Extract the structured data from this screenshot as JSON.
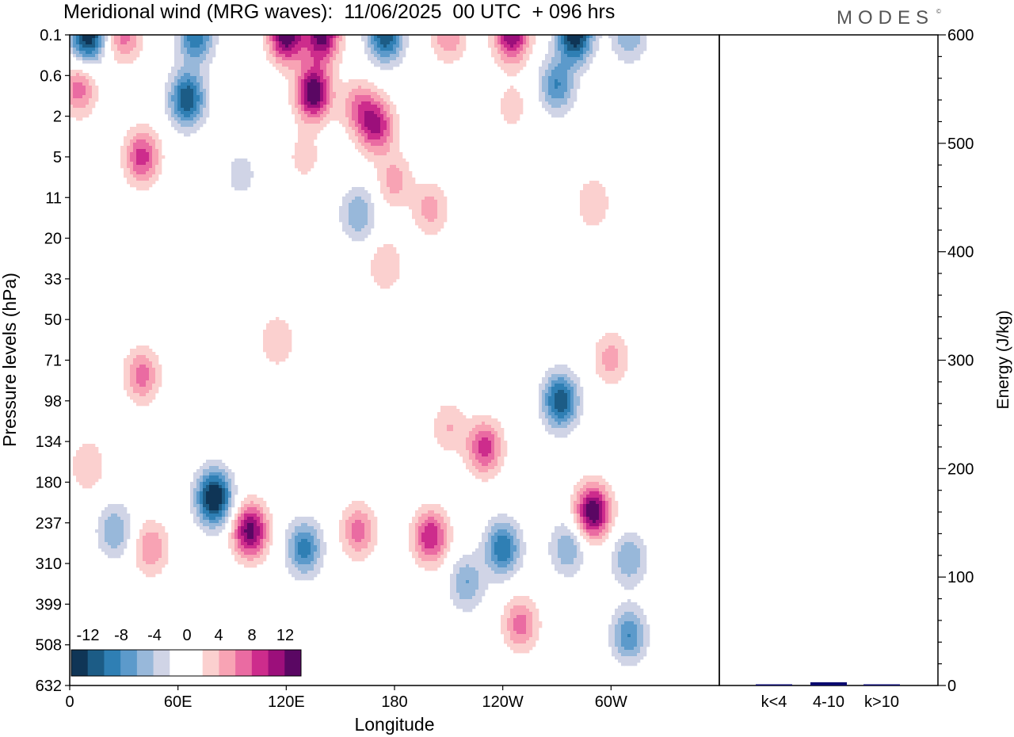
{
  "title": "Meridional wind (MRG waves):  11/06/2025  00 UTC  + 096 hrs",
  "brand": "MODES",
  "brand_mark": "©",
  "chart_data": [
    {
      "type": "heatmap",
      "title": "Meridional wind (MRG waves):  11/06/2025  00 UTC  + 096 hrs",
      "xlabel": "Longitude",
      "ylabel": "Pressure levels (hPa)",
      "x_ticks": [
        "0",
        "60E",
        "120E",
        "180",
        "120W",
        "60W"
      ],
      "y_ticks": [
        "0.1",
        "0.6",
        "2",
        "5",
        "11",
        "20",
        "33",
        "50",
        "71",
        "98",
        "134",
        "180",
        "237",
        "310",
        "399",
        "508",
        "632"
      ],
      "colorbar": {
        "labels": [
          "-12",
          "-8",
          "-4",
          "0",
          "4",
          "8",
          "12"
        ],
        "colors": [
          "#0f3556",
          "#1c5c86",
          "#2f7fb4",
          "#5c9acb",
          "#98b8da",
          "#d0d4e6",
          "#ffffff",
          "#ffffff",
          "#fbd0cf",
          "#f8a3b4",
          "#ea6ba2",
          "#cd2c8c",
          "#9c0f7b",
          "#5a0763"
        ]
      },
      "features": [
        {
          "lon": 10,
          "p": 0.1,
          "value": -14
        },
        {
          "lon": 30,
          "p": 0.1,
          "value": 7
        },
        {
          "lon": 70,
          "p": 0.1,
          "value": -10
        },
        {
          "lon": 120,
          "p": 0.1,
          "value": 14
        },
        {
          "lon": 140,
          "p": 0.1,
          "value": 13
        },
        {
          "lon": 175,
          "p": 0.1,
          "value": -12
        },
        {
          "lon": 210,
          "p": 0.1,
          "value": 6
        },
        {
          "lon": 245,
          "p": 0.1,
          "value": 12
        },
        {
          "lon": 280,
          "p": 0.1,
          "value": -14
        },
        {
          "lon": 310,
          "p": 0.1,
          "value": -6
        },
        {
          "lon": 5,
          "p": 0.9,
          "value": 7
        },
        {
          "lon": 65,
          "p": 1.2,
          "value": -12
        },
        {
          "lon": 135,
          "p": 1.0,
          "value": 14
        },
        {
          "lon": 160,
          "p": 1.5,
          "value": 6
        },
        {
          "lon": 270,
          "p": 0.8,
          "value": -8
        },
        {
          "lon": 245,
          "p": 1.5,
          "value": 3
        },
        {
          "lon": 170,
          "p": 2.5,
          "value": 10
        },
        {
          "lon": 180,
          "p": 8,
          "value": 5
        },
        {
          "lon": 40,
          "p": 5,
          "value": 9
        },
        {
          "lon": 130,
          "p": 5,
          "value": 3
        },
        {
          "lon": 95,
          "p": 7,
          "value": -3
        },
        {
          "lon": 160,
          "p": 14,
          "value": -6
        },
        {
          "lon": 200,
          "p": 13,
          "value": 5
        },
        {
          "lon": 290,
          "p": 12,
          "value": 4
        },
        {
          "lon": 175,
          "p": 28,
          "value": 4
        },
        {
          "lon": 40,
          "p": 80,
          "value": 7
        },
        {
          "lon": 115,
          "p": 60,
          "value": 4
        },
        {
          "lon": 300,
          "p": 70,
          "value": 5
        },
        {
          "lon": 10,
          "p": 160,
          "value": 4
        },
        {
          "lon": 25,
          "p": 250,
          "value": -6
        },
        {
          "lon": 45,
          "p": 280,
          "value": 6
        },
        {
          "lon": 80,
          "p": 200,
          "value": -15
        },
        {
          "lon": 100,
          "p": 250,
          "value": 13
        },
        {
          "lon": 130,
          "p": 280,
          "value": -9
        },
        {
          "lon": 160,
          "p": 250,
          "value": 7
        },
        {
          "lon": 200,
          "p": 260,
          "value": 10
        },
        {
          "lon": 210,
          "p": 120,
          "value": 4
        },
        {
          "lon": 230,
          "p": 140,
          "value": 9
        },
        {
          "lon": 220,
          "p": 350,
          "value": -6
        },
        {
          "lon": 240,
          "p": 280,
          "value": -10
        },
        {
          "lon": 250,
          "p": 450,
          "value": 7
        },
        {
          "lon": 272,
          "p": 98,
          "value": -12
        },
        {
          "lon": 276,
          "p": 280,
          "value": -6
        },
        {
          "lon": 290,
          "p": 220,
          "value": 14
        },
        {
          "lon": 310,
          "p": 300,
          "value": -6
        },
        {
          "lon": 310,
          "p": 480,
          "value": -8
        }
      ]
    },
    {
      "type": "bar",
      "categories": [
        "k<4",
        "4-10",
        "k>10"
      ],
      "values": [
        1,
        3,
        0.5
      ],
      "ylabel": "Energy (J/kg)",
      "ylim": [
        0,
        600
      ],
      "y_ticks": [
        0,
        100,
        200,
        300,
        400,
        500,
        600
      ],
      "color": "#0a0a6e"
    }
  ]
}
